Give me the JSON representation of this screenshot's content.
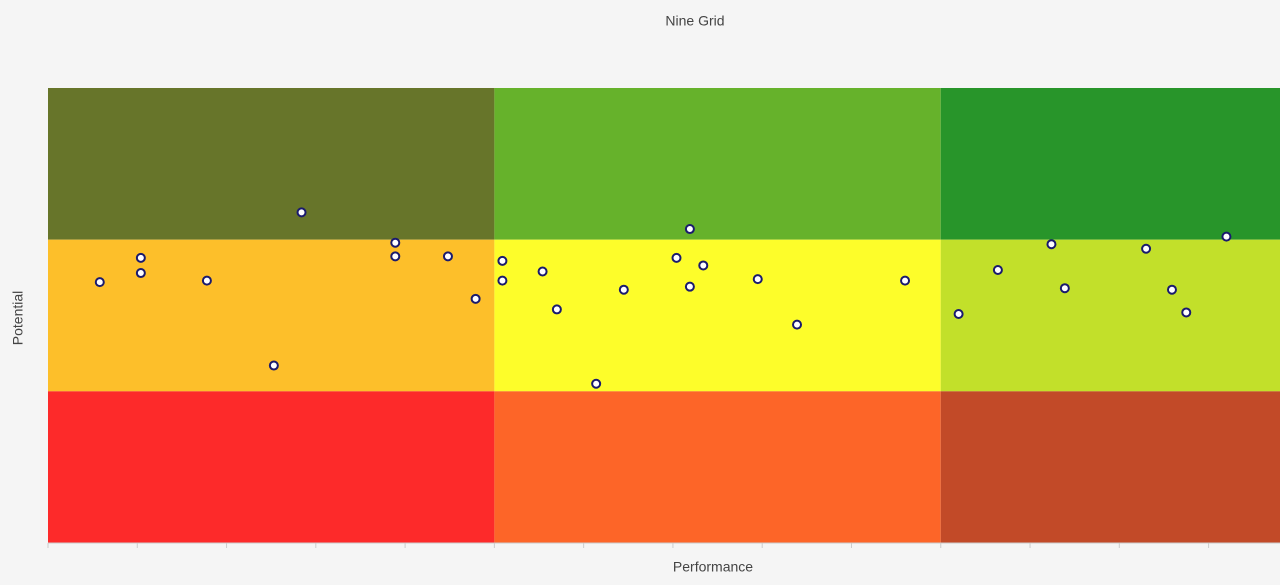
{
  "chart_data": {
    "type": "scatter",
    "title": "Nine Grid",
    "x_label": "Performance",
    "y_label": "Potential",
    "xlim": [
      0,
      13.8
    ],
    "ylim": [
      0,
      3
    ],
    "xticks": [
      0,
      1,
      2,
      3,
      4,
      5,
      6,
      7,
      8,
      9,
      10,
      11,
      12,
      13
    ],
    "zones": [
      {
        "x": [
          0,
          5
        ],
        "y": [
          2,
          3
        ],
        "color": "#67752a"
      },
      {
        "x": [
          5,
          10
        ],
        "y": [
          2,
          3
        ],
        "color": "#66b22b"
      },
      {
        "x": [
          10,
          15
        ],
        "y": [
          2,
          3
        ],
        "color": "#28952a"
      },
      {
        "x": [
          0,
          5
        ],
        "y": [
          1,
          2
        ],
        "color": "#fdbf2a"
      },
      {
        "x": [
          5,
          10
        ],
        "y": [
          1,
          2
        ],
        "color": "#fdfd2a"
      },
      {
        "x": [
          10,
          15
        ],
        "y": [
          1,
          2
        ],
        "color": "#c2e02a"
      },
      {
        "x": [
          0,
          5
        ],
        "y": [
          0,
          1
        ],
        "color": "#fd2a2a"
      },
      {
        "x": [
          5,
          10
        ],
        "y": [
          0,
          1
        ],
        "color": "#fd6528"
      },
      {
        "x": [
          10,
          15
        ],
        "y": [
          0,
          1
        ],
        "color": "#c24a28"
      }
    ],
    "point_color": "#ffffff",
    "point_stroke": "#1a1a6e",
    "x": [
      0.58,
      1.04,
      1.04,
      1.78,
      2.53,
      2.84,
      3.89,
      3.89,
      4.48,
      4.79,
      5.09,
      5.09,
      5.54,
      5.7,
      6.14,
      6.45,
      7.04,
      7.19,
      7.19,
      7.34,
      7.95,
      8.39,
      9.6,
      10.2,
      10.64,
      11.24,
      11.39,
      12.3,
      12.59,
      12.75,
      13.2
    ],
    "values": [
      1.72,
      1.88,
      1.78,
      1.73,
      1.17,
      2.18,
      1.98,
      1.89,
      1.89,
      1.61,
      1.86,
      1.73,
      1.79,
      1.54,
      1.05,
      1.67,
      1.88,
      2.07,
      1.69,
      1.83,
      1.74,
      1.44,
      1.73,
      1.51,
      1.8,
      1.97,
      1.68,
      1.94,
      1.67,
      1.52,
      2.02
    ]
  }
}
